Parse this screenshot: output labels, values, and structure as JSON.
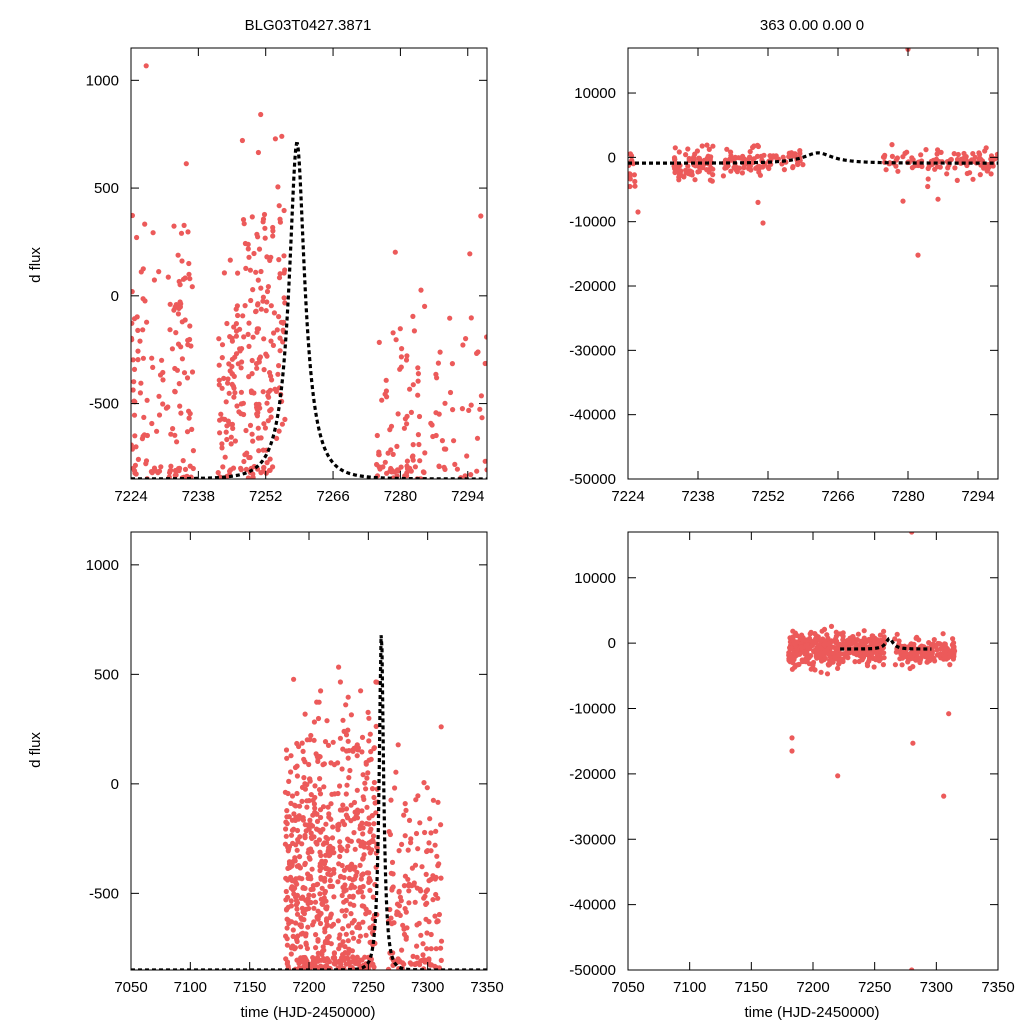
{
  "figure": {
    "left_title": "BLG03T0427.3871",
    "right_title": "363  0.00  0.00  0",
    "point_color": "#ec5a5a",
    "model_color": "#000000"
  },
  "chart_data": [
    {
      "id": "top-left",
      "type": "scatter",
      "title": "BLG03T0427.3871",
      "xlabel": "",
      "ylabel": "d flux",
      "xlim": [
        7224,
        7298
      ],
      "ylim": [
        -850,
        1150
      ],
      "xticks": [
        7224,
        7238,
        7252,
        7266,
        7280,
        7294
      ],
      "yticks": [
        1000,
        500,
        0,
        -500
      ],
      "model": {
        "t0": 7258.5,
        "tE": 4.5,
        "baseline": -850,
        "peak": 710
      },
      "seed": 11,
      "seasons": [
        {
          "x0": 7224,
          "x1": 7226,
          "n": 30,
          "mean": -400,
          "sd": 420
        },
        {
          "x0": 7226,
          "x1": 7232,
          "n": 45,
          "mean": -350,
          "sd": 520
        },
        {
          "x0": 7232,
          "x1": 7237,
          "n": 80,
          "mean": -300,
          "sd": 420
        },
        {
          "x0": 7242,
          "x1": 7247,
          "n": 80,
          "mean": -480,
          "sd": 320
        },
        {
          "x0": 7247,
          "x1": 7256,
          "n": 170,
          "mean": -350,
          "sd": 380
        },
        {
          "x0": 7275,
          "x1": 7284,
          "n": 75,
          "mean": -600,
          "sd": 300
        },
        {
          "x0": 7284,
          "x1": 7298,
          "n": 55,
          "mean": -550,
          "sd": 350
        }
      ]
    },
    {
      "id": "top-right",
      "type": "scatter",
      "title": "363  0.00  0.00  0",
      "xlabel": "",
      "ylabel": "",
      "xlim": [
        7224,
        7298
      ],
      "ylim": [
        -50000,
        17000
      ],
      "xticks": [
        7224,
        7238,
        7252,
        7266,
        7280,
        7294
      ],
      "yticks": [
        10000,
        0,
        -10000,
        -20000,
        -30000,
        -40000,
        -50000
      ],
      "model": {
        "t0": 7262,
        "tE": 8,
        "baseline": -900,
        "peak": 700
      },
      "seed": 23,
      "seasons": [
        {
          "x0": 7224,
          "x1": 7225.5,
          "n": 15,
          "mean": -1200,
          "sd": 1500
        },
        {
          "x0": 7233,
          "x1": 7241,
          "n": 80,
          "mean": -1000,
          "sd": 1200
        },
        {
          "x0": 7243,
          "x1": 7252,
          "n": 70,
          "mean": -800,
          "sd": 1000
        },
        {
          "x0": 7252,
          "x1": 7259,
          "n": 35,
          "mean": -300,
          "sd": 900
        },
        {
          "x0": 7275,
          "x1": 7298,
          "n": 110,
          "mean": -900,
          "sd": 1000
        }
      ],
      "outliers": [
        [
          7226,
          -8500
        ],
        [
          7251,
          -10200
        ],
        [
          7250,
          -7000
        ],
        [
          7282,
          -15200
        ],
        [
          7280,
          16800
        ],
        [
          7286,
          -6500
        ],
        [
          7279,
          -6800
        ]
      ]
    },
    {
      "id": "bottom-left",
      "type": "scatter",
      "title": "",
      "xlabel": "time (HJD-2450000)",
      "ylabel": "d flux",
      "xlim": [
        7050,
        7350
      ],
      "ylim": [
        -850,
        1150
      ],
      "xticks": [
        7050,
        7100,
        7150,
        7200,
        7250,
        7300,
        7350
      ],
      "yticks": [
        1000,
        500,
        0,
        -500
      ],
      "model": {
        "t0": 7261,
        "tE": 5,
        "baseline": -850,
        "peak": 700
      },
      "seed": 37,
      "seasons": [
        {
          "x0": 7180,
          "x1": 7222,
          "n": 420,
          "mean": -450,
          "sd": 360
        },
        {
          "x0": 7224,
          "x1": 7258,
          "n": 300,
          "mean": -400,
          "sd": 380
        },
        {
          "x0": 7266,
          "x1": 7312,
          "n": 160,
          "mean": -560,
          "sd": 300
        }
      ]
    },
    {
      "id": "bottom-right",
      "type": "scatter",
      "title": "",
      "xlabel": "time (HJD-2450000)",
      "ylabel": "",
      "xlim": [
        7050,
        7350
      ],
      "ylim": [
        -50000,
        17000
      ],
      "xticks": [
        7050,
        7100,
        7150,
        7200,
        7250,
        7300,
        7350
      ],
      "yticks": [
        10000,
        0,
        -10000,
        -20000,
        -30000,
        -40000,
        -50000
      ],
      "model": {
        "t0": 7262,
        "tE": 8,
        "baseline": -900,
        "peak": 700,
        "x0": 7222,
        "x1": 7296
      },
      "seed": 53,
      "seasons": [
        {
          "x0": 7180,
          "x1": 7222,
          "n": 260,
          "mean": -1000,
          "sd": 1300
        },
        {
          "x0": 7224,
          "x1": 7258,
          "n": 200,
          "mean": -800,
          "sd": 1100
        },
        {
          "x0": 7266,
          "x1": 7315,
          "n": 160,
          "mean": -1300,
          "sd": 1000
        }
      ],
      "outliers": [
        [
          7183,
          -14500
        ],
        [
          7183,
          -16500
        ],
        [
          7220,
          -20300
        ],
        [
          7281,
          -15300
        ],
        [
          7306,
          -23400
        ],
        [
          7310,
          -10800
        ],
        [
          7280,
          17000
        ],
        [
          7280,
          -50000
        ]
      ]
    }
  ]
}
